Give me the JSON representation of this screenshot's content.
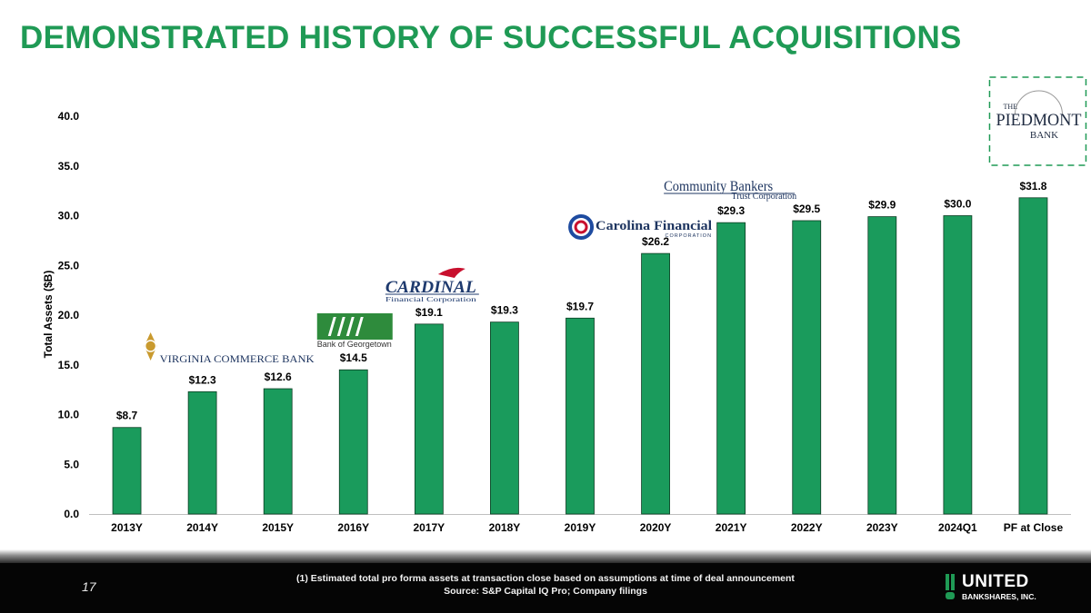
{
  "page": {
    "title": "DEMONSTRATED HISTORY OF SUCCESSFUL ACQUISITIONS",
    "page_number": "17",
    "footnote": "(1) Estimated total pro forma assets at transaction close based on assumptions at time of deal announcement",
    "source": "Source: S&P Capital IQ Pro; Company filings",
    "brand_name": "UNITED",
    "brand_sub": "BANKSHARES, INC.",
    "accent_color": "#1f9a55",
    "bar_color": "#1a9b5c"
  },
  "chart_data": {
    "type": "bar",
    "title": "",
    "xlabel": "",
    "ylabel": "Total Assets ($B)",
    "ylim": [
      0,
      40
    ],
    "yticks": [
      "0.0",
      "5.0",
      "10.0",
      "15.0",
      "20.0",
      "25.0",
      "30.0",
      "35.0",
      "40.0"
    ],
    "categories": [
      "2013Y",
      "2014Y",
      "2015Y",
      "2016Y",
      "2017Y",
      "2018Y",
      "2019Y",
      "2020Y",
      "2021Y",
      "2022Y",
      "2023Y",
      "2024Q1",
      "PF at Close"
    ],
    "values": [
      8.7,
      12.3,
      12.6,
      14.5,
      19.1,
      19.3,
      19.7,
      26.2,
      29.3,
      29.5,
      29.9,
      30.0,
      31.8
    ],
    "data_labels": [
      "$8.7",
      "$12.3",
      "$12.6",
      "$14.5",
      "$19.1",
      "$19.3",
      "$19.7",
      "$26.2",
      "$29.3",
      "$29.5",
      "$29.9",
      "$30.0",
      "$31.8"
    ],
    "acquisitions": [
      {
        "category": "2014Y",
        "name_a": "VIRGINIA COMMERCE BANK"
      },
      {
        "category": "2016Y",
        "name_a": "Bank of Georgetown"
      },
      {
        "category": "2017Y",
        "name_a": "CARDINAL",
        "name_b": "Financial Corporation"
      },
      {
        "category": "2020Y",
        "name_a": "Carolina Financial",
        "name_b": "CORPORATION"
      },
      {
        "category": "2021Y",
        "name_a": "Community Bankers",
        "name_b": "Trust Corporation"
      },
      {
        "category": "PF at Close",
        "name_a": "THE",
        "name_b": "PIEDMONT",
        "name_c": "BANK"
      }
    ]
  }
}
